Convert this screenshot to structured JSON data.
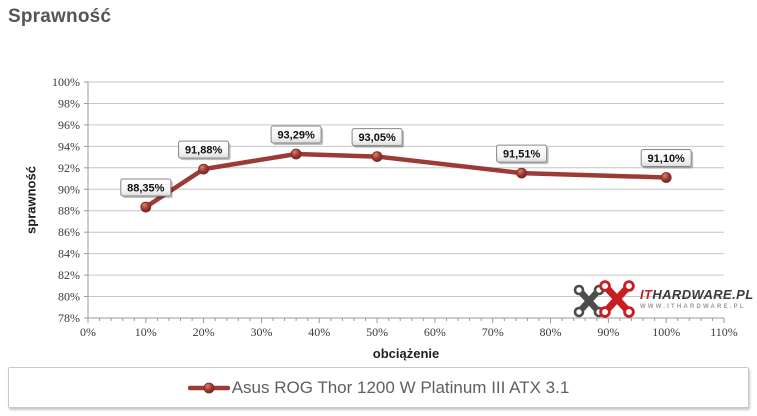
{
  "page": {
    "title": "Sprawność"
  },
  "chart_data": {
    "type": "line",
    "title": "Sprawność",
    "xlabel": "obciążenie",
    "ylabel": "sprawność",
    "x": [
      10,
      20,
      36,
      50,
      75,
      100
    ],
    "values": [
      88.35,
      91.88,
      93.29,
      93.05,
      91.51,
      91.1
    ],
    "point_labels": [
      "88,35%",
      "91,88%",
      "93,29%",
      "93,05%",
      "91,51%",
      "91,10%"
    ],
    "series_name": "Asus ROG Thor 1200 W Platinum III ATX 3.1",
    "xlim": [
      0,
      110
    ],
    "ylim": [
      78,
      100
    ],
    "x_tick_step": 10,
    "x_minor_tick_step": 2,
    "y_tick_step": 2,
    "grid": "horizontal",
    "legend_position": "bottom"
  },
  "legend": {
    "series_label": "Asus ROG Thor 1200 W Platinum III ATX 3.1",
    "marker_color": "#9e3a35"
  },
  "watermark": {
    "brand_prefix": "IT",
    "brand_suffix": "HARDWARE.PL",
    "website": "WWW.ITHARDWARE.PL"
  },
  "colors": {
    "series": "#9e3a35",
    "marker_edge": "#7a2824",
    "grid": "#c6c6c6",
    "axis": "#9a9a9a",
    "title": "#555555",
    "legend_text": "#5f5f5f"
  }
}
